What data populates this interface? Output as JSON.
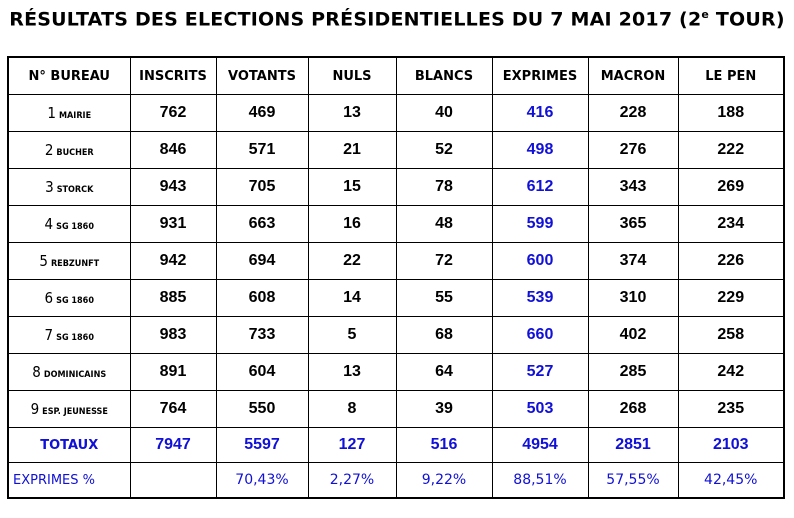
{
  "title_main": "RÉSULTATS DES ELECTIONS PRÉSIDENTIELLES DU 7 MAI 2017 (2",
  "title_sup": "e",
  "title_end": " TOUR)",
  "headers": [
    "N° BUREAU",
    "INSCRITS",
    "VOTANTS",
    "NULS",
    "BLANCS",
    "EXPRIMES",
    "MACRON",
    "LE PEN"
  ],
  "rows": [
    {
      "num": "1",
      "name": "MAIRIE",
      "inscrits": "762",
      "votants": "469",
      "nuls": "13",
      "blancs": "40",
      "exprimes": "416",
      "macron": "228",
      "lepen": "188"
    },
    {
      "num": "2",
      "name": "BUCHER",
      "inscrits": "846",
      "votants": "571",
      "nuls": "21",
      "blancs": "52",
      "exprimes": "498",
      "macron": "276",
      "lepen": "222"
    },
    {
      "num": "3",
      "name": "STORCK",
      "inscrits": "943",
      "votants": "705",
      "nuls": "15",
      "blancs": "78",
      "exprimes": "612",
      "macron": "343",
      "lepen": "269"
    },
    {
      "num": "4",
      "name": "SG 1860",
      "inscrits": "931",
      "votants": "663",
      "nuls": "16",
      "blancs": "48",
      "exprimes": "599",
      "macron": "365",
      "lepen": "234"
    },
    {
      "num": "5",
      "name": "REBZUNFT",
      "inscrits": "942",
      "votants": "694",
      "nuls": "22",
      "blancs": "72",
      "exprimes": "600",
      "macron": "374",
      "lepen": "226"
    },
    {
      "num": "6",
      "name": "SG 1860",
      "inscrits": "885",
      "votants": "608",
      "nuls": "14",
      "blancs": "55",
      "exprimes": "539",
      "macron": "310",
      "lepen": "229"
    },
    {
      "num": "7",
      "name": "SG 1860",
      "inscrits": "983",
      "votants": "733",
      "nuls": "5",
      "blancs": "68",
      "exprimes": "660",
      "macron": "402",
      "lepen": "258"
    },
    {
      "num": "8",
      "name": "DOMINICAINS",
      "inscrits": "891",
      "votants": "604",
      "nuls": "13",
      "blancs": "64",
      "exprimes": "527",
      "macron": "285",
      "lepen": "242"
    },
    {
      "num": "9",
      "name": "ESP. JEUNESSE",
      "inscrits": "764",
      "votants": "550",
      "nuls": "8",
      "blancs": "39",
      "exprimes": "503",
      "macron": "268",
      "lepen": "235"
    }
  ],
  "totals": {
    "label": "TOTAUX",
    "inscrits": "7947",
    "votants": "5597",
    "nuls": "127",
    "blancs": "516",
    "exprimes": "4954",
    "macron": "2851",
    "lepen": "2103"
  },
  "percentages": {
    "label": "EXPRIMES %",
    "inscrits": "",
    "votants": "70,43%",
    "nuls": "2,27%",
    "blancs": "9,22%",
    "exprimes": "88,51%",
    "macron": "57,55%",
    "lepen": "42,45%"
  },
  "colors": {
    "accent_blue": "#1010d8"
  }
}
